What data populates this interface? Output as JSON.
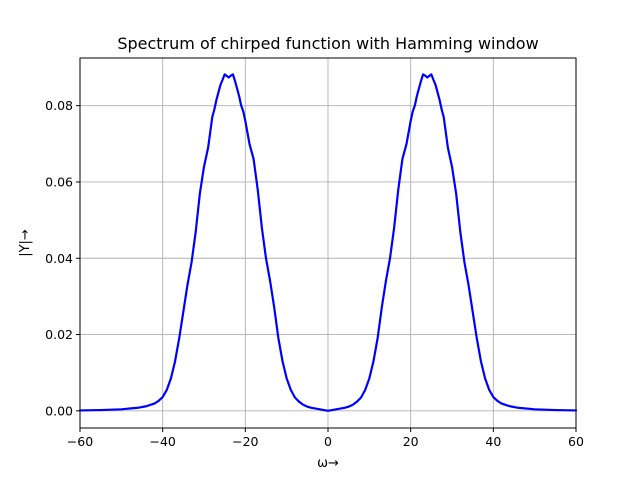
{
  "chart_data": {
    "type": "line",
    "title": "Spectrum of chirped function with Hamming window",
    "xlabel": "ω→",
    "ylabel": "|Y|→",
    "xlim": [
      -60,
      60
    ],
    "ylim": [
      -0.0045,
      0.0925
    ],
    "xticks": [
      -60,
      -40,
      -20,
      0,
      20,
      40,
      60
    ],
    "xtick_labels": [
      "−60",
      "−40",
      "−20",
      "0",
      "20",
      "40",
      "60"
    ],
    "yticks": [
      0.0,
      0.02,
      0.04,
      0.06,
      0.08
    ],
    "ytick_labels": [
      "0.00",
      "0.02",
      "0.04",
      "0.06",
      "0.08"
    ],
    "grid": true,
    "legend": "none",
    "series": [
      {
        "color": "#0000ff",
        "x": [
          -60,
          -55,
          -50,
          -46,
          -44,
          -42,
          -41,
          -40,
          -39,
          -38,
          -37,
          -36,
          -35,
          -34,
          -33,
          -32,
          -31,
          -30,
          -29,
          -28,
          -27.5,
          -27,
          -26.5,
          -26,
          -25.5,
          -25,
          -24.5,
          -24,
          -23.5,
          -23,
          -22.5,
          -22,
          -21.5,
          -21,
          -20.5,
          -20,
          -19,
          -18,
          -17,
          -16,
          -15,
          -14,
          -13,
          -12,
          -11,
          -10,
          -9,
          -8,
          -7,
          -6,
          -5,
          -4,
          -3,
          -2,
          -1,
          0,
          1,
          2,
          3,
          4,
          5,
          6,
          7,
          8,
          9,
          10,
          11,
          12,
          13,
          14,
          15,
          16,
          17,
          18,
          19,
          20,
          20.5,
          21,
          21.5,
          22,
          22.5,
          23,
          23.5,
          24,
          24.5,
          25,
          25.5,
          26,
          26.5,
          27,
          27.5,
          28,
          29,
          30,
          31,
          32,
          33,
          34,
          35,
          36,
          37,
          38,
          39,
          40,
          41,
          42,
          44,
          46,
          50,
          55,
          60
        ],
        "y": [
          0.0001,
          0.0002,
          0.0004,
          0.0008,
          0.0012,
          0.0019,
          0.0026,
          0.0036,
          0.0055,
          0.0085,
          0.013,
          0.019,
          0.026,
          0.033,
          0.039,
          0.047,
          0.057,
          0.064,
          0.069,
          0.077,
          0.079,
          0.0815,
          0.0835,
          0.0855,
          0.0868,
          0.0882,
          0.0878,
          0.0874,
          0.0879,
          0.0882,
          0.0865,
          0.0845,
          0.0825,
          0.08,
          0.0785,
          0.076,
          0.07,
          0.066,
          0.058,
          0.048,
          0.04,
          0.034,
          0.027,
          0.019,
          0.013,
          0.0085,
          0.0055,
          0.0035,
          0.0024,
          0.0016,
          0.0011,
          0.0008,
          0.0006,
          0.0004,
          0.0002,
          0.0,
          0.0002,
          0.0004,
          0.0006,
          0.0008,
          0.0011,
          0.0016,
          0.0024,
          0.0035,
          0.0055,
          0.0085,
          0.013,
          0.019,
          0.027,
          0.034,
          0.04,
          0.048,
          0.058,
          0.066,
          0.07,
          0.076,
          0.0785,
          0.08,
          0.0825,
          0.0845,
          0.0865,
          0.0882,
          0.0879,
          0.0874,
          0.0878,
          0.0882,
          0.0868,
          0.0855,
          0.0835,
          0.0815,
          0.079,
          0.077,
          0.069,
          0.064,
          0.057,
          0.047,
          0.039,
          0.033,
          0.026,
          0.019,
          0.013,
          0.0085,
          0.0055,
          0.0036,
          0.0026,
          0.0019,
          0.0012,
          0.0008,
          0.0004,
          0.0002,
          0.0001
        ]
      }
    ]
  }
}
